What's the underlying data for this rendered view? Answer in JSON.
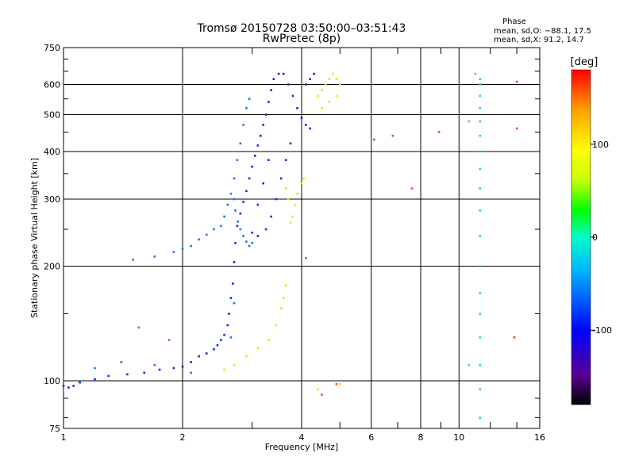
{
  "chart_data": {
    "type": "scatter",
    "title": "Tromsø 20150728 03:50:00–03:51:43",
    "subtitle": "RwPretec (8p)",
    "xlabel": "Frequency [MHz]",
    "ylabel": "Stationary phase Virtual Height [km]",
    "x_scale": "log",
    "y_scale": "log",
    "xlim": [
      1,
      16
    ],
    "ylim": [
      75,
      750
    ],
    "x_ticks": [
      1,
      2,
      4,
      6,
      8,
      10,
      16
    ],
    "y_ticks": [
      75,
      100,
      200,
      300,
      400,
      500,
      600,
      750
    ],
    "x_grid_lines": [
      2,
      4,
      6,
      8,
      10
    ],
    "y_grid_lines": [
      100,
      200,
      300,
      400,
      500,
      600
    ],
    "grid": true,
    "phase_stats": {
      "heading": "Phase",
      "o_line": "mean, sd,O: −88.1, 17.5",
      "x_line": "mean, sd,X:  91.2, 14.7"
    },
    "colorbar": {
      "label": "[deg]",
      "range": [
        -180,
        180
      ],
      "ticks": [
        100,
        0,
        -100
      ],
      "colors": [
        "#000000",
        "#5a0096",
        "#0000ff",
        "#00b4ff",
        "#00ffc8",
        "#00ff00",
        "#c8ff00",
        "#ffff00",
        "#ffa000",
        "#ff0000"
      ]
    },
    "series": [
      {
        "color": "#1428d8",
        "points": [
          [
            1.0,
            97
          ],
          [
            1.03,
            96
          ],
          [
            1.06,
            97
          ],
          [
            1.1,
            99
          ],
          [
            1.2,
            101
          ],
          [
            1.3,
            103
          ],
          [
            1.45,
            104
          ],
          [
            1.6,
            105
          ],
          [
            1.75,
            107
          ],
          [
            1.9,
            108
          ],
          [
            2.0,
            109
          ],
          [
            2.1,
            112
          ],
          [
            2.2,
            116
          ],
          [
            2.3,
            118
          ],
          [
            2.4,
            121
          ],
          [
            2.45,
            124
          ],
          [
            2.5,
            128
          ],
          [
            2.55,
            132
          ],
          [
            2.6,
            140
          ],
          [
            2.62,
            150
          ],
          [
            2.65,
            165
          ],
          [
            2.68,
            180
          ],
          [
            2.7,
            205
          ],
          [
            2.72,
            230
          ],
          [
            2.75,
            255
          ],
          [
            2.8,
            275
          ],
          [
            2.85,
            295
          ],
          [
            2.9,
            315
          ],
          [
            2.95,
            340
          ],
          [
            3.0,
            365
          ],
          [
            3.05,
            390
          ],
          [
            3.1,
            415
          ],
          [
            3.15,
            440
          ],
          [
            3.2,
            470
          ],
          [
            3.25,
            500
          ],
          [
            3.3,
            540
          ],
          [
            3.35,
            580
          ],
          [
            3.4,
            620
          ],
          [
            3.5,
            640
          ],
          [
            3.6,
            640
          ],
          [
            3.7,
            600
          ],
          [
            3.8,
            560
          ],
          [
            3.9,
            520
          ],
          [
            4.0,
            490
          ],
          [
            4.1,
            470
          ],
          [
            4.2,
            460
          ],
          [
            4.3,
            640
          ],
          [
            4.2,
            620
          ],
          [
            4.1,
            600
          ],
          [
            3.0,
            245
          ],
          [
            3.1,
            240
          ],
          [
            3.25,
            250
          ],
          [
            3.35,
            270
          ],
          [
            3.45,
            300
          ],
          [
            3.55,
            340
          ],
          [
            3.65,
            380
          ],
          [
            3.75,
            420
          ],
          [
            3.3,
            380
          ],
          [
            3.2,
            330
          ],
          [
            3.1,
            290
          ]
        ]
      },
      {
        "color": "#1e78e6",
        "points": [
          [
            1.5,
            208
          ],
          [
            1.7,
            212
          ],
          [
            1.9,
            218
          ],
          [
            2.0,
            222
          ],
          [
            2.1,
            226
          ],
          [
            2.2,
            235
          ],
          [
            2.3,
            242
          ],
          [
            2.4,
            250
          ],
          [
            2.5,
            255
          ],
          [
            2.55,
            270
          ],
          [
            2.6,
            290
          ],
          [
            2.65,
            310
          ],
          [
            2.7,
            340
          ],
          [
            2.75,
            380
          ],
          [
            2.8,
            420
          ],
          [
            2.85,
            470
          ],
          [
            2.9,
            520
          ],
          [
            2.95,
            550
          ],
          [
            2.7,
            300
          ],
          [
            2.72,
            280
          ],
          [
            2.76,
            262
          ],
          [
            2.8,
            250
          ],
          [
            2.85,
            240
          ],
          [
            2.9,
            232
          ],
          [
            2.95,
            226
          ],
          [
            3.0,
            230
          ],
          [
            2.65,
            130
          ],
          [
            2.7,
            160
          ],
          [
            1.2,
            108
          ],
          [
            1.4,
            112
          ],
          [
            1.7,
            110
          ],
          [
            2.1,
            105
          ]
        ]
      },
      {
        "color": "#e6e600",
        "points": [
          [
            2.55,
            107
          ],
          [
            2.7,
            110
          ],
          [
            2.9,
            116
          ],
          [
            3.1,
            122
          ],
          [
            3.3,
            128
          ],
          [
            3.45,
            140
          ],
          [
            3.55,
            155
          ],
          [
            3.6,
            165
          ],
          [
            3.65,
            178
          ],
          [
            3.75,
            260
          ],
          [
            3.8,
            270
          ],
          [
            3.85,
            290
          ],
          [
            3.9,
            310
          ],
          [
            4.0,
            330
          ],
          [
            4.05,
            340
          ],
          [
            3.7,
            300
          ],
          [
            3.65,
            320
          ],
          [
            4.4,
            560
          ],
          [
            4.5,
            580
          ],
          [
            4.6,
            600
          ],
          [
            4.7,
            620
          ],
          [
            4.8,
            640
          ],
          [
            4.9,
            620
          ],
          [
            5.0,
            600
          ],
          [
            4.9,
            560
          ],
          [
            4.7,
            540
          ],
          [
            4.5,
            520
          ],
          [
            5.0,
            98
          ],
          [
            4.4,
            95
          ]
        ]
      },
      {
        "color": "#32c8e6",
        "points": [
          [
            11.0,
            640
          ],
          [
            11.3,
            620
          ],
          [
            11.3,
            600
          ],
          [
            11.3,
            560
          ],
          [
            11.3,
            520
          ],
          [
            11.3,
            480
          ],
          [
            11.3,
            440
          ],
          [
            11.3,
            400
          ],
          [
            11.3,
            360
          ],
          [
            11.3,
            320
          ],
          [
            11.3,
            280
          ],
          [
            11.3,
            240
          ],
          [
            11.3,
            200
          ],
          [
            11.3,
            170
          ],
          [
            11.3,
            150
          ],
          [
            11.3,
            130
          ],
          [
            11.3,
            110
          ],
          [
            11.3,
            95
          ],
          [
            11.3,
            80
          ],
          [
            10.6,
            480
          ],
          [
            10.6,
            110
          ]
        ]
      },
      {
        "color": "#e65014",
        "points": [
          [
            6.8,
            440
          ],
          [
            6.1,
            430
          ],
          [
            7.6,
            320
          ],
          [
            8.9,
            450
          ],
          [
            4.5,
            92
          ],
          [
            4.1,
            210
          ],
          [
            4.9,
            98
          ],
          [
            1.55,
            138
          ],
          [
            1.85,
            128
          ],
          [
            14.0,
            610
          ],
          [
            14.0,
            460
          ],
          [
            13.8,
            130
          ]
        ]
      }
    ]
  }
}
